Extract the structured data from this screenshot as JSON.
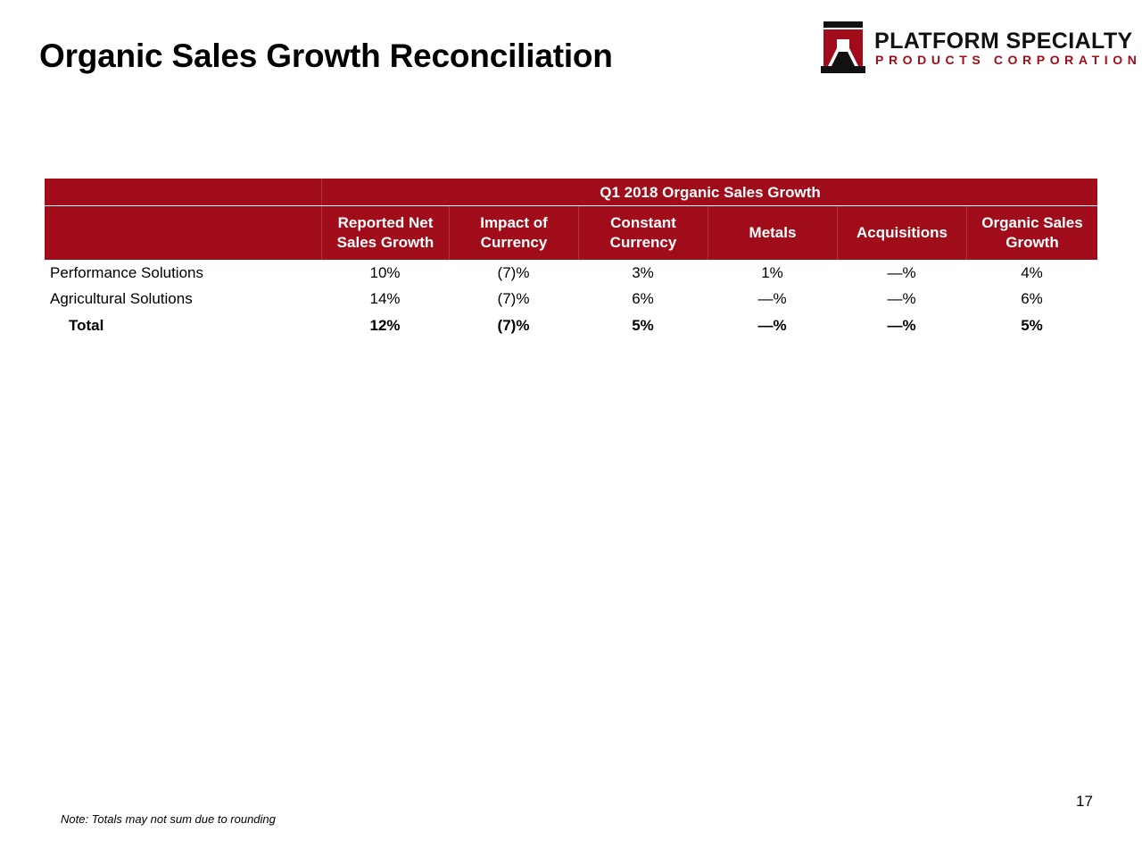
{
  "title": "Organic Sales Growth Reconciliation",
  "logo": {
    "line1": "PLATFORM SPECIALTY",
    "line2": "PRODUCTS CORPORATION",
    "brand_color": "#a00c19"
  },
  "table": {
    "group_header": "Q1 2018 Organic Sales Growth",
    "columns": [
      {
        "line1": "Reported Net",
        "line2": "Sales Growth"
      },
      {
        "line1": "Impact of",
        "line2": "Currency"
      },
      {
        "line1": "Constant",
        "line2": "Currency"
      },
      {
        "line1": "Metals",
        "line2": ""
      },
      {
        "line1": "Acquisitions",
        "line2": ""
      },
      {
        "line1": "Organic Sales",
        "line2": "Growth"
      }
    ],
    "rows": [
      {
        "label": "Performance Solutions",
        "values": [
          "10%",
          "(7)%",
          "3%",
          "1%",
          "—%",
          "4%"
        ]
      },
      {
        "label": "Agricultural Solutions",
        "values": [
          "14%",
          "(7)%",
          "6%",
          "—%",
          "—%",
          "6%"
        ]
      },
      {
        "label": "Total",
        "values": [
          "12%",
          "(7)%",
          "5%",
          "—%",
          "—%",
          "5%"
        ]
      }
    ]
  },
  "page_number": "17",
  "note": "Note: Totals may not sum due to rounding"
}
